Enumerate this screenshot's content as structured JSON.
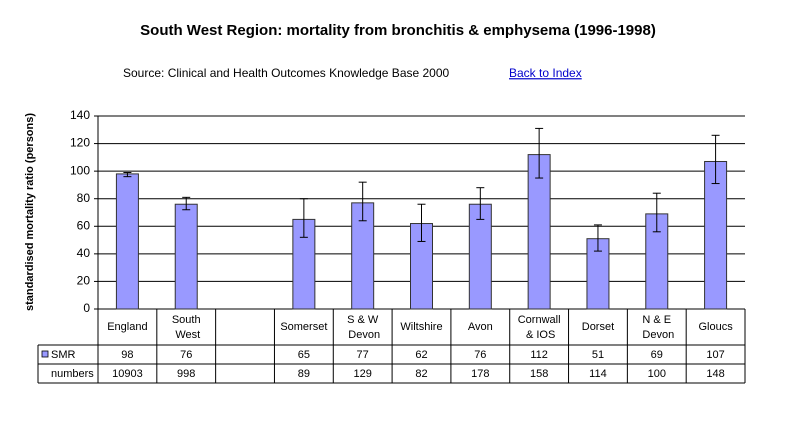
{
  "chart_data": {
    "type": "bar",
    "title": "South West Region:  mortality from bronchitis & emphysema (1996-1998)",
    "subtitle": "Source: Clinical and Health Outcomes Knowledge Base 2000",
    "link": "Back to Index",
    "y_label": "standardised mortality ratio (persons)",
    "categories": [
      "England",
      "South West",
      null,
      "Somerset",
      "S & W Devon",
      "Wiltshire",
      "Avon",
      "Cornwall & IOS",
      "Dorset",
      "N & E Devon",
      "Gloucs"
    ],
    "series": [
      {
        "name": "SMR",
        "color": "#9999ff",
        "values": [
          98,
          76,
          null,
          65,
          77,
          62,
          76,
          112,
          51,
          69,
          107
        ],
        "lower": [
          96,
          72,
          null,
          52,
          64,
          49,
          65,
          95,
          42,
          56,
          91
        ],
        "upper": [
          99,
          81,
          null,
          80,
          92,
          76,
          88,
          131,
          61,
          84,
          126
        ]
      }
    ],
    "numbers": {
      "name": "numbers",
      "values": [
        10903,
        998,
        null,
        89,
        129,
        82,
        178,
        158,
        114,
        100,
        148
      ]
    },
    "ylim": [
      0,
      140
    ],
    "yticks": [
      0,
      20,
      40,
      60,
      80,
      100,
      120,
      140
    ],
    "grid": true
  }
}
